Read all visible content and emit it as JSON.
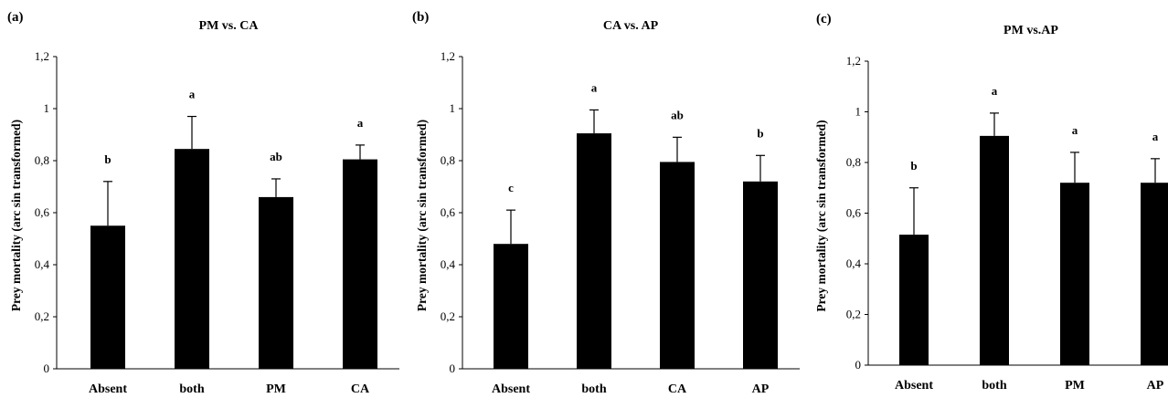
{
  "chart_data": [
    {
      "type": "bar",
      "panel": "(a)",
      "title": "PM vs. CA",
      "ylabel": "Prey mortality (arc sin transformed)",
      "xlabel": "",
      "ylim": [
        0,
        1.2
      ],
      "yticks": [
        "0",
        "0,2",
        "0,4",
        "0,6",
        "0,8",
        "1",
        "1,2"
      ],
      "categories": [
        "Absent",
        "both",
        "PM",
        "CA"
      ],
      "values": [
        0.55,
        0.845,
        0.66,
        0.805
      ],
      "error_upper": [
        0.72,
        0.97,
        0.73,
        0.86
      ],
      "letters": [
        "b",
        "a",
        "ab",
        "a"
      ],
      "grid": false
    },
    {
      "type": "bar",
      "panel": "(b)",
      "title": "CA vs. AP",
      "ylabel": "Prey mortality (arc sin transformed)",
      "xlabel": "",
      "ylim": [
        0,
        1.2
      ],
      "yticks": [
        "0",
        "0,2",
        "0,4",
        "0,6",
        "0,8",
        "1",
        "1,2"
      ],
      "categories": [
        "Absent",
        "both",
        "CA",
        "AP"
      ],
      "values": [
        0.48,
        0.905,
        0.795,
        0.72
      ],
      "error_upper": [
        0.61,
        0.995,
        0.89,
        0.82
      ],
      "letters": [
        "c",
        "a",
        "ab",
        "b"
      ],
      "grid": false
    },
    {
      "type": "bar",
      "panel": "(c)",
      "title": "PM vs.AP",
      "ylabel": "Prey mortality (arc sin transformed)",
      "xlabel": "",
      "ylim": [
        0,
        1.2
      ],
      "yticks": [
        "0",
        "0,2",
        "0,4",
        "0,6",
        "0,8",
        "1",
        "1,2"
      ],
      "categories": [
        "Absent",
        "both",
        "PM",
        "AP"
      ],
      "values": [
        0.515,
        0.905,
        0.72,
        0.72
      ],
      "error_upper": [
        0.7,
        0.995,
        0.84,
        0.815
      ],
      "letters": [
        "b",
        "a",
        "a",
        "a"
      ],
      "grid": false
    }
  ]
}
